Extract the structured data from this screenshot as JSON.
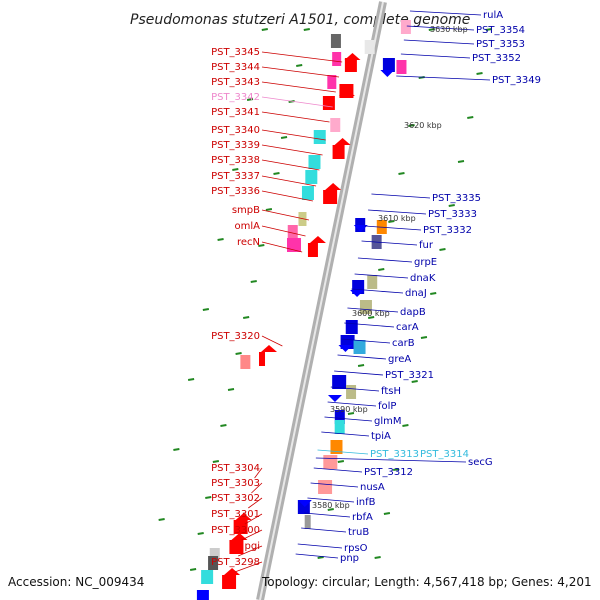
{
  "title": "Pseudomonas stutzeri A1501, complete genome",
  "footer": {
    "accession": "Accession: NC_009434",
    "topology": "Topology: circular; Length: 4,567,418 bp; Genes: 4,201"
  },
  "colors": {
    "left_label": "#cc0000",
    "right_label": "#0000aa",
    "cyan_label": "#33bbdd",
    "pink_label": "#ee88cc",
    "backbone": "#999999",
    "tick": "#228822"
  },
  "kbp_marks": [
    "3630 kbp",
    "3620 kbp",
    "3610 kbp",
    "3600 kbp",
    "3590 kbp",
    "3580 kbp"
  ],
  "left_labels": [
    {
      "text": "PST_3345",
      "c": "red"
    },
    {
      "text": "PST_3344",
      "c": "red"
    },
    {
      "text": "PST_3343",
      "c": "red"
    },
    {
      "text": "PST_3342",
      "c": "pink"
    },
    {
      "text": "PST_3341",
      "c": "red"
    },
    {
      "text": "PST_3340",
      "c": "red"
    },
    {
      "text": "PST_3339",
      "c": "red"
    },
    {
      "text": "PST_3338",
      "c": "red"
    },
    {
      "text": "PST_3337",
      "c": "red"
    },
    {
      "text": "PST_3336",
      "c": "red"
    },
    {
      "text": "smpB",
      "c": "red"
    },
    {
      "text": "omlA",
      "c": "red"
    },
    {
      "text": "recN",
      "c": "red"
    },
    {
      "text": "PST_3320",
      "c": "red"
    },
    {
      "text": "PST_3304",
      "c": "red"
    },
    {
      "text": "PST_3303",
      "c": "red"
    },
    {
      "text": "PST_3302",
      "c": "red"
    },
    {
      "text": "PST_3301",
      "c": "red"
    },
    {
      "text": "PST_3300",
      "c": "red"
    },
    {
      "text": "pgi",
      "c": "red"
    },
    {
      "text": "PST_3298",
      "c": "red"
    }
  ],
  "right_labels": [
    {
      "text": "rulA",
      "c": "blue"
    },
    {
      "text": "PST_3354",
      "c": "blue"
    },
    {
      "text": "PST_3353",
      "c": "blue"
    },
    {
      "text": "PST_3352",
      "c": "blue"
    },
    {
      "text": "PST_3349",
      "c": "blue"
    },
    {
      "text": "PST_3335",
      "c": "blue"
    },
    {
      "text": "PST_3333",
      "c": "blue"
    },
    {
      "text": "PST_3332",
      "c": "blue"
    },
    {
      "text": "fur",
      "c": "blue"
    },
    {
      "text": "grpE",
      "c": "blue"
    },
    {
      "text": "dnaK",
      "c": "blue"
    },
    {
      "text": "dnaJ",
      "c": "blue"
    },
    {
      "text": "dapB",
      "c": "blue"
    },
    {
      "text": "carA",
      "c": "blue"
    },
    {
      "text": "carB",
      "c": "blue"
    },
    {
      "text": "greA",
      "c": "blue"
    },
    {
      "text": "PST_3321",
      "c": "blue"
    },
    {
      "text": "ftsH",
      "c": "blue"
    },
    {
      "text": "folP",
      "c": "blue"
    },
    {
      "text": "glmM",
      "c": "blue"
    },
    {
      "text": "tpiA",
      "c": "blue"
    },
    {
      "text": "PST_3313",
      "c": "cyan"
    },
    {
      "text": "PST_3314",
      "c": "cyan"
    },
    {
      "text": "secG",
      "c": "blue"
    },
    {
      "text": "PST_3312",
      "c": "blue"
    },
    {
      "text": "nusA",
      "c": "blue"
    },
    {
      "text": "infB",
      "c": "blue"
    },
    {
      "text": "rbfA",
      "c": "blue"
    },
    {
      "text": "truB",
      "c": "blue"
    },
    {
      "text": "rpsO",
      "c": "blue"
    },
    {
      "text": "pnp",
      "c": "blue"
    }
  ]
}
